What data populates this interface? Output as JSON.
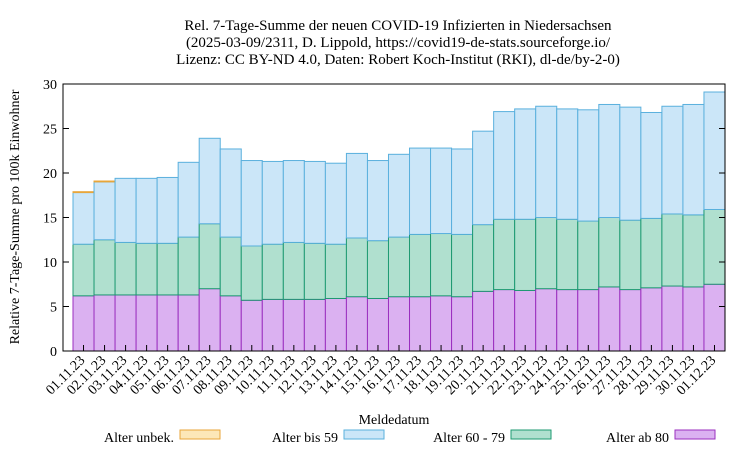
{
  "chart_data": {
    "type": "bar",
    "stacked": true,
    "title": [
      "Rel. 7-Tage-Summe der neuen COVID-19 Infizierten in Niedersachsen",
      "(2025-03-09/2311, D. Lippold, https://covid19-de-stats.sourceforge.io/",
      "Lizenz: CC BY-ND 4.0, Daten: Robert Koch-Institut (RKI), dl-de/by-2-0)"
    ],
    "xlabel": "Meldedatum",
    "ylabel": "Relative 7-Tage-Summe pro 100k Einwohner",
    "ylim": [
      0,
      30
    ],
    "yticks": [
      0,
      5,
      10,
      15,
      20,
      25,
      30
    ],
    "grid": false,
    "legend_position": "bottom",
    "categories": [
      "01.11.23",
      "02.11.23",
      "03.11.23",
      "04.11.23",
      "05.11.23",
      "06.11.23",
      "07.11.23",
      "08.11.23",
      "09.11.23",
      "10.11.23",
      "11.11.23",
      "12.11.23",
      "13.11.23",
      "14.11.23",
      "15.11.23",
      "16.11.23",
      "17.11.23",
      "18.11.23",
      "19.11.23",
      "20.11.23",
      "21.11.23",
      "22.11.23",
      "23.11.23",
      "24.11.23",
      "25.11.23",
      "26.11.23",
      "27.11.23",
      "28.11.23",
      "29.11.23",
      "30.11.23",
      "01.12.23"
    ],
    "series": [
      {
        "name": "Alter ab 80",
        "color": "#dbb1f1",
        "edge": "#9b2fbf",
        "values": [
          6.2,
          6.3,
          6.3,
          6.3,
          6.3,
          6.3,
          7.0,
          6.2,
          5.7,
          5.8,
          5.8,
          5.8,
          5.9,
          6.1,
          5.9,
          6.1,
          6.1,
          6.2,
          6.1,
          6.7,
          6.9,
          6.8,
          7.0,
          6.9,
          6.9,
          7.2,
          6.9,
          7.1,
          7.3,
          7.2,
          7.5
        ]
      },
      {
        "name": "Alter 60 - 79",
        "color": "#b0e0cf",
        "edge": "#1e9a72",
        "values": [
          5.8,
          6.2,
          5.9,
          5.8,
          5.8,
          6.5,
          7.3,
          6.6,
          6.1,
          6.2,
          6.4,
          6.3,
          6.1,
          6.6,
          6.5,
          6.7,
          7.0,
          7.0,
          7.0,
          7.5,
          7.9,
          8.0,
          8.0,
          7.9,
          7.7,
          7.8,
          7.8,
          7.8,
          8.1,
          8.1,
          8.4
        ]
      },
      {
        "name": "Alter bis 59",
        "color": "#cbe6f8",
        "edge": "#5ab0dd",
        "values": [
          5.8,
          6.5,
          7.2,
          7.3,
          7.4,
          8.4,
          9.6,
          9.9,
          9.6,
          9.3,
          9.2,
          9.2,
          9.1,
          9.5,
          9.0,
          9.3,
          9.7,
          9.6,
          9.6,
          10.5,
          12.1,
          12.4,
          12.5,
          12.4,
          12.5,
          12.7,
          12.7,
          11.9,
          12.1,
          12.4,
          13.2
        ]
      },
      {
        "name": "Alter unbek.",
        "color": "#fce7b8",
        "edge": "#e8a63a",
        "values": [
          0.1,
          0.1,
          0,
          0,
          0,
          0,
          0,
          0,
          0,
          0,
          0,
          0,
          0,
          0,
          0,
          0,
          0,
          0,
          0,
          0,
          0,
          0,
          0,
          0,
          0,
          0,
          0,
          0,
          0,
          0,
          0
        ]
      }
    ]
  }
}
